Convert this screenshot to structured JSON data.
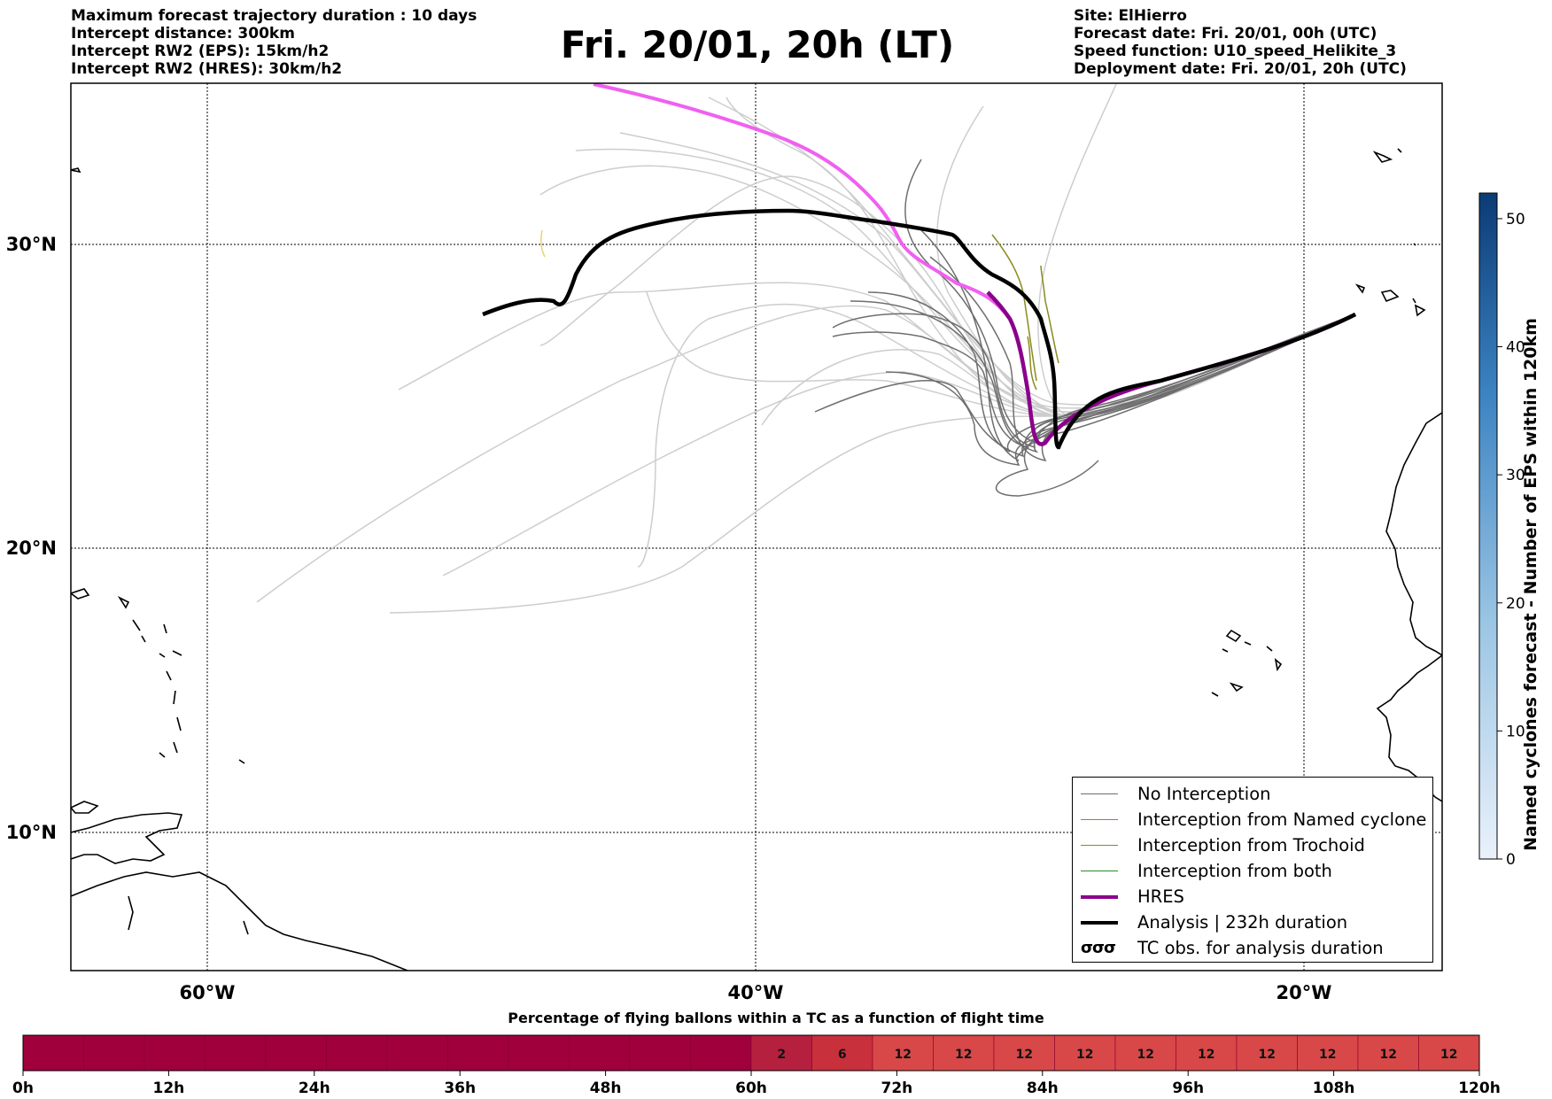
{
  "header": {
    "left": [
      "Maximum forecast trajectory duration : 10 days",
      "Intercept distance: 300km",
      "Intercept RW2 (EPS):  15km/h2",
      "Intercept RW2 (HRES): 30km/h2"
    ],
    "title": "Fri. 20/01, 20h (LT)",
    "right": [
      "Site: ElHierro",
      "Forecast date: Fri. 20/01, 00h (UTC)",
      "Speed function: U10_speed_Helikite_3",
      "Deployment date: Fri. 20/01, 20h (UTC)"
    ]
  },
  "map": {
    "lat_labels": [
      "30°N",
      "20°N",
      "10°N"
    ],
    "lon_labels": [
      "60°W",
      "40°W",
      "20°W"
    ],
    "extent": {
      "lon": [
        -65,
        -15
      ],
      "lat": [
        5.3,
        34.5
      ]
    }
  },
  "legend": {
    "items": [
      {
        "label": "No Interception",
        "color": "#6e6e6e",
        "kind": "thin"
      },
      {
        "label": "Interception from Named cyclone",
        "color": "#e0602a",
        "kind": "thin"
      },
      {
        "label": "Interception from Trochoid",
        "color": "#8a8a20",
        "kind": "thin"
      },
      {
        "label": "Interception from both",
        "color": "#2a8a2a",
        "kind": "thin"
      },
      {
        "label": "HRES",
        "color": "#8b008b",
        "kind": "thick"
      },
      {
        "label": "Analysis | 232h duration",
        "color": "#000000",
        "kind": "thick"
      },
      {
        "label": "TC obs. for analysis duration",
        "color": "#000000",
        "kind": "symbol",
        "symbol": "σσσ"
      }
    ]
  },
  "colorbar": {
    "label": "Named cyclones forecast - Number of EPS within 120km",
    "ticks": [
      "0",
      "10",
      "20",
      "30",
      "40",
      "50"
    ],
    "range": [
      0,
      52
    ],
    "color_low": "#eaf1fb",
    "color_high": "#0b3b75"
  },
  "timebar": {
    "title": "Percentage of flying ballons within a TC as a function of flight time",
    "tick_labels": [
      "0h",
      "12h",
      "24h",
      "36h",
      "48h",
      "60h",
      "72h",
      "84h",
      "96h",
      "108h",
      "120h"
    ],
    "cell_values": [
      "2",
      "6",
      "12",
      "12",
      "12",
      "12",
      "12",
      "12",
      "12",
      "12",
      "12",
      "12"
    ],
    "color_zero": "#a0003c",
    "color_low": "#b5203e",
    "color_mid": "#c8303c",
    "color_high": "#d84848"
  }
}
